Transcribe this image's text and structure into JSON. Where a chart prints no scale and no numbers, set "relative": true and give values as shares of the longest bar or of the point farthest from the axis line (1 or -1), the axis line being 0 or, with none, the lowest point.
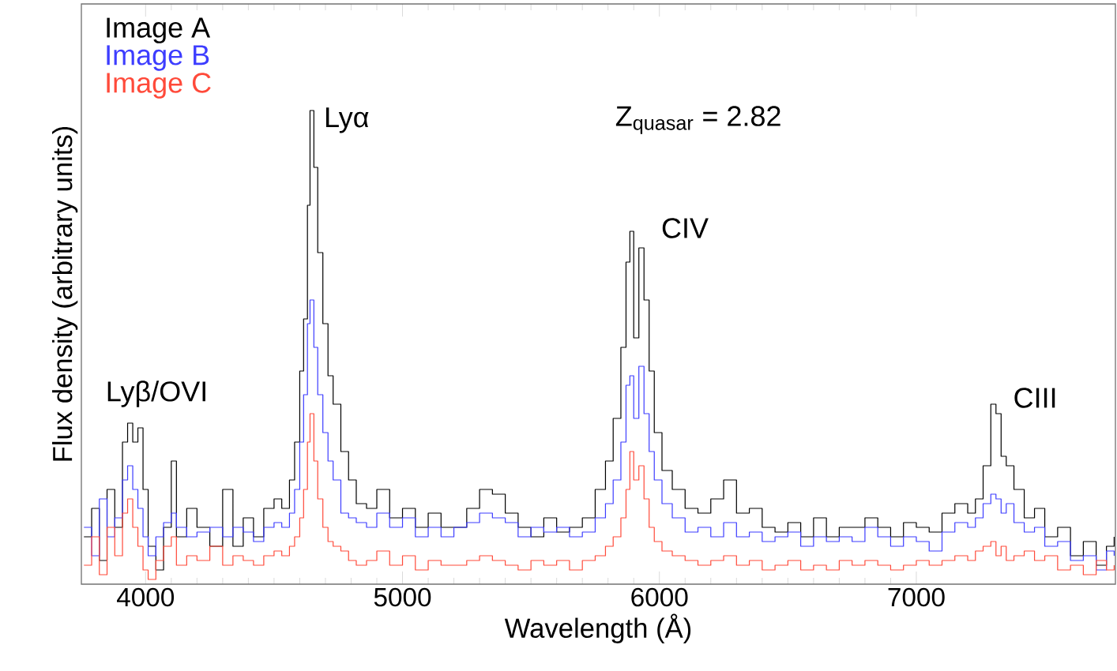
{
  "chart_data": {
    "type": "step",
    "relative": true,
    "xlabel": "Wavelength (Å)",
    "ylabel": "Flux density (arbitrary units)",
    "xlim": [
      3750,
      7775
    ],
    "xticks": [
      {
        "value": 4000,
        "label": "4000"
      },
      {
        "value": 5000,
        "label": "5000"
      },
      {
        "value": 6000,
        "label": "6000"
      },
      {
        "value": 7000,
        "label": "7000"
      }
    ],
    "legend": "top left",
    "line_style": "solid",
    "annotations": [
      {
        "text": "Lyβ/OVI",
        "x": 3930,
        "y": 0.34
      },
      {
        "text": "Lyα",
        "x": 4640,
        "y": 1.0
      },
      {
        "text": "CIV",
        "x": 5920,
        "y": 0.71
      },
      {
        "text": "CIII",
        "x": 7290,
        "y": 0.38
      },
      "Z$_{quasar}$ = 2.82"
    ],
    "x": [
      3760,
      3790,
      3820,
      3850,
      3880,
      3910,
      3930,
      3950,
      3970,
      3990,
      4010,
      4040,
      4070,
      4100,
      4120,
      4160,
      4200,
      4250,
      4300,
      4340,
      4380,
      4420,
      4460,
      4500,
      4530,
      4560,
      4580,
      4600,
      4615,
      4630,
      4640,
      4655,
      4670,
      4690,
      4710,
      4730,
      4760,
      4790,
      4820,
      4860,
      4900,
      4950,
      5000,
      5050,
      5100,
      5150,
      5200,
      5250,
      5300,
      5350,
      5400,
      5450,
      5500,
      5550,
      5600,
      5650,
      5700,
      5750,
      5790,
      5820,
      5850,
      5870,
      5885,
      5900,
      5920,
      5940,
      5960,
      5980,
      6010,
      6050,
      6100,
      6150,
      6200,
      6250,
      6300,
      6350,
      6400,
      6450,
      6500,
      6550,
      6600,
      6650,
      6700,
      6750,
      6800,
      6850,
      6900,
      6950,
      7000,
      7050,
      7100,
      7150,
      7200,
      7230,
      7260,
      7290,
      7310,
      7330,
      7350,
      7380,
      7420,
      7460,
      7500,
      7550,
      7600,
      7650,
      7700,
      7740,
      7770
    ],
    "series": [
      {
        "name": "Image A",
        "color": "#000000",
        "values": [
          0.1,
          0.16,
          0.05,
          0.2,
          0.12,
          0.3,
          0.34,
          0.3,
          0.33,
          0.2,
          0.08,
          0.03,
          0.12,
          0.26,
          0.1,
          0.16,
          0.12,
          0.08,
          0.2,
          0.08,
          0.14,
          0.1,
          0.16,
          0.18,
          0.16,
          0.22,
          0.3,
          0.45,
          0.56,
          0.8,
          1.0,
          0.88,
          0.7,
          0.55,
          0.44,
          0.38,
          0.28,
          0.22,
          0.17,
          0.16,
          0.2,
          0.14,
          0.16,
          0.12,
          0.15,
          0.12,
          0.12,
          0.16,
          0.2,
          0.19,
          0.15,
          0.12,
          0.1,
          0.14,
          0.11,
          0.12,
          0.14,
          0.2,
          0.26,
          0.35,
          0.5,
          0.68,
          0.745,
          0.52,
          0.71,
          0.6,
          0.45,
          0.32,
          0.24,
          0.2,
          0.16,
          0.15,
          0.18,
          0.22,
          0.15,
          0.16,
          0.12,
          0.11,
          0.13,
          0.1,
          0.14,
          0.1,
          0.12,
          0.12,
          0.14,
          0.12,
          0.1,
          0.13,
          0.12,
          0.11,
          0.15,
          0.17,
          0.15,
          0.18,
          0.25,
          0.38,
          0.36,
          0.27,
          0.25,
          0.2,
          0.14,
          0.16,
          0.1,
          0.12,
          0.06,
          0.09,
          0.04,
          0.08,
          0.1
        ]
      },
      {
        "name": "Image B",
        "color": "#3d3dff",
        "values": [
          0.12,
          0.06,
          0.18,
          0.1,
          0.14,
          0.22,
          0.25,
          0.2,
          0.16,
          0.1,
          0.06,
          0.1,
          0.13,
          0.15,
          0.12,
          0.1,
          0.11,
          0.12,
          0.1,
          0.12,
          0.11,
          0.09,
          0.12,
          0.13,
          0.12,
          0.15,
          0.2,
          0.3,
          0.4,
          0.55,
          0.6,
          0.5,
          0.4,
          0.32,
          0.26,
          0.22,
          0.15,
          0.14,
          0.13,
          0.12,
          0.15,
          0.12,
          0.14,
          0.1,
          0.12,
          0.1,
          0.12,
          0.13,
          0.15,
          0.14,
          0.13,
          0.1,
          0.12,
          0.11,
          0.12,
          0.1,
          0.11,
          0.14,
          0.17,
          0.22,
          0.3,
          0.42,
          0.44,
          0.35,
          0.46,
          0.36,
          0.28,
          0.22,
          0.17,
          0.14,
          0.11,
          0.12,
          0.1,
          0.13,
          0.1,
          0.11,
          0.09,
          0.1,
          0.11,
          0.08,
          0.1,
          0.09,
          0.1,
          0.09,
          0.12,
          0.1,
          0.08,
          0.1,
          0.09,
          0.07,
          0.11,
          0.13,
          0.12,
          0.14,
          0.17,
          0.19,
          0.18,
          0.15,
          0.17,
          0.13,
          0.11,
          0.12,
          0.08,
          0.09,
          0.05,
          0.06,
          0.03,
          0.07,
          0.06
        ]
      },
      {
        "name": "Image C",
        "color": "#ff4a3a",
        "values": [
          0.04,
          0.1,
          0.02,
          0.12,
          0.06,
          0.15,
          0.18,
          0.12,
          0.08,
          0.03,
          0.01,
          0.05,
          0.08,
          0.1,
          0.04,
          0.06,
          0.05,
          0.08,
          0.04,
          0.06,
          0.05,
          0.04,
          0.06,
          0.07,
          0.06,
          0.08,
          0.1,
          0.14,
          0.2,
          0.3,
          0.36,
          0.26,
          0.18,
          0.12,
          0.09,
          0.08,
          0.07,
          0.05,
          0.04,
          0.05,
          0.07,
          0.04,
          0.06,
          0.03,
          0.05,
          0.04,
          0.04,
          0.05,
          0.06,
          0.05,
          0.04,
          0.03,
          0.05,
          0.04,
          0.05,
          0.03,
          0.05,
          0.06,
          0.08,
          0.1,
          0.14,
          0.2,
          0.28,
          0.22,
          0.25,
          0.18,
          0.12,
          0.09,
          0.07,
          0.06,
          0.05,
          0.04,
          0.05,
          0.06,
          0.04,
          0.05,
          0.03,
          0.04,
          0.05,
          0.03,
          0.04,
          0.03,
          0.05,
          0.04,
          0.05,
          0.04,
          0.03,
          0.04,
          0.05,
          0.04,
          0.05,
          0.06,
          0.05,
          0.07,
          0.08,
          0.09,
          0.06,
          0.08,
          0.05,
          0.06,
          0.07,
          0.05,
          0.06,
          0.03,
          0.04,
          0.02,
          0.05,
          0.03,
          0.04
        ]
      }
    ]
  }
}
